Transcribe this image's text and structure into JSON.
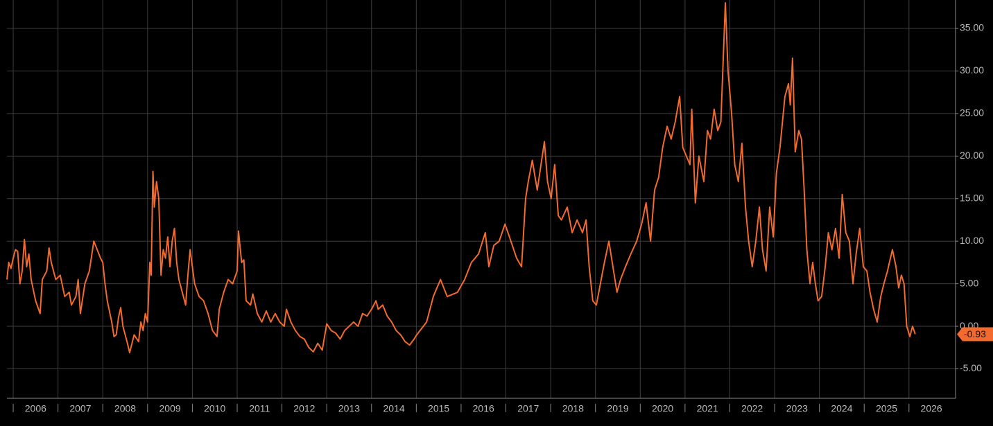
{
  "chart_data": {
    "type": "line",
    "x": [
      2005.86,
      2005.9,
      2005.95,
      2006.0,
      2006.05,
      2006.1,
      2006.15,
      2006.2,
      2006.25,
      2006.3,
      2006.35,
      2006.4,
      2006.5,
      2006.6,
      2006.65,
      2006.75,
      2006.8,
      2006.85,
      2006.95,
      2007.05,
      2007.15,
      2007.25,
      2007.3,
      2007.4,
      2007.45,
      2007.5,
      2007.6,
      2007.7,
      2007.8,
      2007.95,
      2008.0,
      2008.05,
      2008.1,
      2008.2,
      2008.25,
      2008.3,
      2008.35,
      2008.4,
      2008.45,
      2008.55,
      2008.6,
      2008.7,
      2008.8,
      2008.85,
      2008.9,
      2008.95,
      2009.0,
      2009.05,
      2009.08,
      2009.12,
      2009.15,
      2009.2,
      2009.25,
      2009.3,
      2009.35,
      2009.4,
      2009.45,
      2009.5,
      2009.55,
      2009.6,
      2009.65,
      2009.7,
      2009.8,
      2009.85,
      2009.9,
      2009.95,
      2010.05,
      2010.15,
      2010.25,
      2010.35,
      2010.45,
      2010.55,
      2010.6,
      2010.7,
      2010.8,
      2010.9,
      2011.0,
      2011.03,
      2011.1,
      2011.15,
      2011.2,
      2011.3,
      2011.35,
      2011.45,
      2011.55,
      2011.65,
      2011.75,
      2011.85,
      2011.95,
      2012.05,
      2012.1,
      2012.2,
      2012.3,
      2012.4,
      2012.5,
      2012.6,
      2012.7,
      2012.8,
      2012.9,
      2013.0,
      2013.1,
      2013.2,
      2013.3,
      2013.4,
      2013.5,
      2013.6,
      2013.7,
      2013.8,
      2013.9,
      2014.0,
      2014.1,
      2014.15,
      2014.25,
      2014.35,
      2014.45,
      2014.55,
      2014.65,
      2014.75,
      2014.85,
      2014.95,
      2015.01,
      2015.23,
      2015.38,
      2015.54,
      2015.69,
      2015.92,
      2016.08,
      2016.23,
      2016.39,
      2016.54,
      2016.62,
      2016.73,
      2016.85,
      2016.98,
      2017.08,
      2017.24,
      2017.35,
      2017.44,
      2017.5,
      2017.59,
      2017.7,
      2017.86,
      2017.93,
      2018.01,
      2018.09,
      2018.17,
      2018.24,
      2018.37,
      2018.48,
      2018.59,
      2018.71,
      2018.79,
      2018.86,
      2018.94,
      2019.02,
      2019.11,
      2019.2,
      2019.3,
      2019.39,
      2019.48,
      2019.56,
      2019.67,
      2019.79,
      2019.92,
      2020.03,
      2020.13,
      2020.23,
      2020.32,
      2020.41,
      2020.5,
      2020.6,
      2020.69,
      2020.78,
      2020.88,
      2020.95,
      2021.03,
      2021.11,
      2021.15,
      2021.23,
      2021.31,
      2021.42,
      2021.5,
      2021.57,
      2021.65,
      2021.73,
      2021.8,
      2021.9,
      2021.96,
      2022.04,
      2022.11,
      2022.19,
      2022.27,
      2022.35,
      2022.42,
      2022.5,
      2022.58,
      2022.66,
      2022.73,
      2022.81,
      2022.89,
      2022.97,
      2023.04,
      2023.12,
      2023.23,
      2023.31,
      2023.35,
      2023.4,
      2023.46,
      2023.54,
      2023.6,
      2023.66,
      2023.72,
      2023.79,
      2023.85,
      2023.91,
      2023.97,
      2024.05,
      2024.13,
      2024.2,
      2024.28,
      2024.36,
      2024.44,
      2024.51,
      2024.59,
      2024.67,
      2024.75,
      2024.82,
      2024.9,
      2024.98,
      2025.06,
      2025.13,
      2025.21,
      2025.29,
      2025.37,
      2025.44,
      2025.52,
      2025.63,
      2025.71,
      2025.77,
      2025.83,
      2025.89,
      2025.95,
      2026.02,
      2026.08,
      2026.14
    ],
    "values": [
      5.5,
      7.5,
      6.8,
      8.0,
      9.0,
      8.8,
      5.0,
      6.5,
      10.2,
      7.0,
      8.5,
      5.5,
      3.0,
      1.5,
      5.5,
      6.5,
      9.2,
      7.5,
      5.5,
      6.0,
      3.5,
      4.0,
      2.5,
      3.5,
      5.5,
      1.5,
      5.0,
      6.5,
      10.0,
      8.0,
      7.5,
      5.0,
      3.0,
      0.5,
      -1.2,
      -1.0,
      1.0,
      2.2,
      0.0,
      -2.0,
      -3.1,
      -1.0,
      -1.8,
      0.5,
      -0.5,
      1.5,
      0.5,
      7.5,
      6.0,
      18.2,
      14.0,
      17.0,
      15.0,
      6.0,
      9.0,
      8.0,
      10.5,
      7.0,
      10.0,
      11.5,
      7.5,
      5.5,
      3.5,
      2.5,
      6.0,
      9.0,
      5.0,
      3.5,
      3.0,
      1.5,
      -0.5,
      -1.2,
      2.0,
      4.0,
      5.5,
      5.0,
      6.5,
      11.2,
      7.5,
      7.8,
      3.0,
      2.5,
      3.8,
      1.5,
      0.5,
      1.8,
      0.5,
      1.5,
      0.5,
      0.0,
      2.0,
      0.5,
      -0.5,
      -1.2,
      -1.5,
      -2.5,
      -3.0,
      -2.0,
      -2.8,
      0.3,
      -0.5,
      -0.8,
      -1.5,
      -0.5,
      0.0,
      0.5,
      0.0,
      1.5,
      1.2,
      2.0,
      3.0,
      2.0,
      2.5,
      1.2,
      0.5,
      -0.5,
      -1.0,
      -1.8,
      -2.2,
      -1.5,
      -1.0,
      0.5,
      3.5,
      5.5,
      3.5,
      4.0,
      5.5,
      7.5,
      8.5,
      11.0,
      7.0,
      9.5,
      10.0,
      12.0,
      10.5,
      8.0,
      7.0,
      15.0,
      17.0,
      19.5,
      16.0,
      21.7,
      17.0,
      15.0,
      19.0,
      13.0,
      12.5,
      14.0,
      11.0,
      12.5,
      11.0,
      12.5,
      7.0,
      3.0,
      2.5,
      5.0,
      7.5,
      10.0,
      7.0,
      4.0,
      5.5,
      7.0,
      8.5,
      10.0,
      12.0,
      14.5,
      10.0,
      16.0,
      17.5,
      21.0,
      23.5,
      22.0,
      24.0,
      27.0,
      21.0,
      20.0,
      19.0,
      25.5,
      14.5,
      20.0,
      17.0,
      23.0,
      22.0,
      25.5,
      23.0,
      24.0,
      38.0,
      30.0,
      25.0,
      19.0,
      17.0,
      21.5,
      14.0,
      10.0,
      7.0,
      10.0,
      14.0,
      9.0,
      6.5,
      14.0,
      10.5,
      18.0,
      21.0,
      27.0,
      28.5,
      26.0,
      31.5,
      20.5,
      23.0,
      22.0,
      16.0,
      9.0,
      5.0,
      7.5,
      5.0,
      3.0,
      3.5,
      7.0,
      11.0,
      9.0,
      11.5,
      8.0,
      15.5,
      11.0,
      10.0,
      5.0,
      8.5,
      11.5,
      7.0,
      6.5,
      4.0,
      2.0,
      0.5,
      3.5,
      5.0,
      6.5,
      9.0,
      7.0,
      4.5,
      6.0,
      5.0,
      0.0,
      -1.2,
      0.0,
      -0.93
    ],
    "color": "#f26a2e",
    "xlim": [
      2005.86,
      2027.04
    ],
    "xticks": [
      2006,
      2007,
      2008,
      2009,
      2010,
      2011,
      2012,
      2013,
      2014,
      2015,
      2016,
      2017,
      2018,
      2019,
      2020,
      2021,
      2022,
      2023,
      2024,
      2025,
      2026
    ],
    "ylim": [
      -8.46,
      38.34
    ],
    "yticks": [
      {
        "value": -5,
        "label": "-5.00"
      },
      {
        "value": 0,
        "label": "0.00"
      },
      {
        "value": 5,
        "label": "5.00"
      },
      {
        "value": 10,
        "label": "10.00"
      },
      {
        "value": 15,
        "label": "15.00"
      },
      {
        "value": 20,
        "label": "20.00"
      },
      {
        "value": 25,
        "label": "25.00"
      },
      {
        "value": 30,
        "label": "30.00"
      },
      {
        "value": 35,
        "label": "35.00"
      }
    ],
    "grid": true
  }
}
